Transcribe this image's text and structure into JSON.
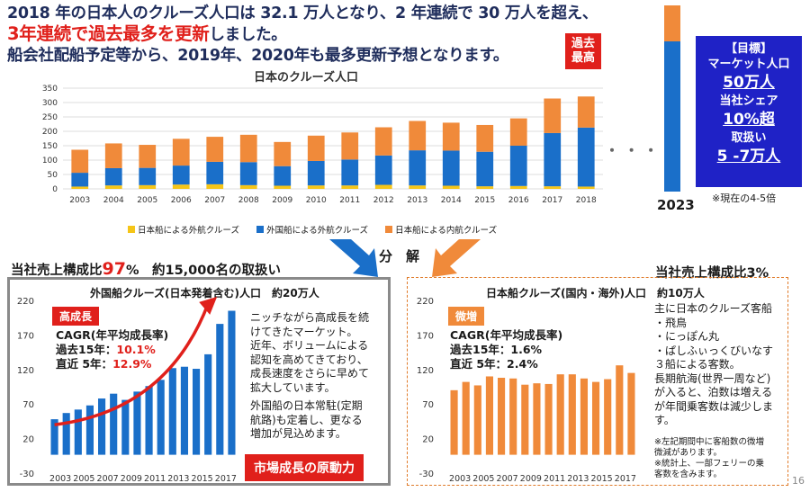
{
  "headline": {
    "line1": "2018 年の日本人のクルーズ人口は 32.1 万人となり、2 年連続で 30 万人を超え、",
    "line2_red": "3年連続で過去最多を更新",
    "line2_rest": "しました。",
    "line3": "船会社配船予定等から、2019年、2020年も最多更新予想となります。"
  },
  "record_badge": "過去\n最高",
  "target": {
    "label": "【目標】",
    "market_label": "マーケット人口",
    "market_value": "50万人",
    "share_label": "当社シェア",
    "share_value": "10%超",
    "handling_label": "取扱い",
    "handling_value": "5 -7万人",
    "note": "※現在の4-5倍",
    "year": "2023",
    "ellipsis": "・ ・ ・"
  },
  "decompose": "分　解",
  "left_header": {
    "prefix": "当社売上構成比",
    "pct": "97",
    "unit": "%",
    "rest": "　約15,000名の取扱い"
  },
  "right_header": "当社売上構成比3%",
  "left_panel": {
    "title": "外国船クルーズ(日本発着含む)人口　約20万人",
    "title_small": "(日本発着含む)",
    "badge": "高成長",
    "cagr_title": "CAGR(年平均成長率)",
    "cagr_15_label": "過去15年：",
    "cagr_15_value": "10.1%",
    "cagr_5_label": "直近 5年：",
    "cagr_5_value": "12.9%",
    "text1": "ニッチながら高成長を続\nけてきたマーケット。\n近年、ボリュームによる\n認知を高めてきており、\n成長速度をさらに早めて\n拡大しています。",
    "text2": "外国船の日本常駐(定期\n航路)も定着し、更なる\n増加が見込めます。",
    "footer_badge": "市場成長の原動力"
  },
  "right_panel": {
    "title": "日本船クルーズ(国内・海外)人口　約10万人",
    "badge": "微増",
    "cagr_title": "CAGR(年平均成長率)",
    "cagr_15": "過去15年：1.6%",
    "cagr_5": "直近 5年：2.4%",
    "text1": "主に日本のクルーズ客船\n・飛鳥\n・にっぽん丸\n・ぱしふぃっくびいなす\n３船による客数。\n長期航海(世界一周など)\nが入ると、泊数は増える\nが年間乗客数は減少しま\nす。",
    "notes": "※左記期間中に客船数の微増\n微減があります。\n※統計上、一部フェリーの乗\n客数を含みます。"
  },
  "page_number": "16",
  "chart_data": [
    {
      "type": "bar",
      "stacked": true,
      "title": "日本のクルーズ人口",
      "categories": [
        "2003",
        "2004",
        "2005",
        "2006",
        "2007",
        "2008",
        "2009",
        "2010",
        "2011",
        "2012",
        "2013",
        "2014",
        "2015",
        "2016",
        "2017",
        "2018"
      ],
      "series": [
        {
          "name": "日本船による外航クルーズ",
          "color": "#f5c518",
          "values": [
            8,
            12,
            13,
            15,
            16,
            13,
            11,
            12,
            12,
            14,
            12,
            11,
            9,
            10,
            9,
            8
          ]
        },
        {
          "name": "外国船による外航クルーズ",
          "color": "#1a6fc9",
          "values": [
            48,
            60,
            60,
            66,
            78,
            80,
            68,
            85,
            90,
            102,
            122,
            122,
            120,
            140,
            185,
            205
          ]
        },
        {
          "name": "日本船による内航クルーズ",
          "color": "#f08a3a",
          "values": [
            80,
            86,
            80,
            93,
            87,
            95,
            84,
            88,
            94,
            98,
            102,
            97,
            93,
            95,
            120,
            108
          ]
        }
      ],
      "yticks": [
        0,
        50,
        100,
        150,
        200,
        250,
        300,
        350
      ],
      "ylim": [
        0,
        350
      ],
      "legend": "bottom"
    },
    {
      "type": "bar",
      "title": "外国船クルーズ(日本発着含む)人口",
      "categories": [
        "2003",
        "2004",
        "2005",
        "2006",
        "2007",
        "2008",
        "2009",
        "2010",
        "2011",
        "2012",
        "2013",
        "2014",
        "2015",
        "2016",
        "2017",
        "2018"
      ],
      "xticks": [
        "2003",
        "2005",
        "2007",
        "2009",
        "2011",
        "2013",
        "2015",
        "2017"
      ],
      "series": [
        {
          "name": "外国船クルーズ人口",
          "color": "#1a6fc9",
          "values": [
            48,
            57,
            62,
            68,
            78,
            85,
            76,
            88,
            96,
            105,
            122,
            124,
            121,
            142,
            186,
            205
          ]
        }
      ],
      "yticks": [
        -30,
        20,
        70,
        120,
        170,
        220
      ],
      "ylim": [
        -30,
        220
      ]
    },
    {
      "type": "bar",
      "title": "日本船クルーズ(国内・海外)人口",
      "categories": [
        "2003",
        "2004",
        "2005",
        "2006",
        "2007",
        "2008",
        "2009",
        "2010",
        "2011",
        "2012",
        "2013",
        "2014",
        "2015",
        "2016",
        "2017",
        "2018"
      ],
      "xticks": [
        "2003",
        "2005",
        "2007",
        "2009",
        "2011",
        "2013",
        "2015",
        "2017"
      ],
      "series": [
        {
          "name": "日本船クルーズ人口",
          "color": "#f08a3a",
          "values": [
            90,
            102,
            97,
            110,
            108,
            107,
            98,
            100,
            99,
            113,
            113,
            107,
            102,
            106,
            126,
            115
          ]
        }
      ],
      "yticks": [
        -30,
        20,
        70,
        120,
        170,
        220
      ],
      "ylim": [
        -30,
        220
      ]
    }
  ]
}
